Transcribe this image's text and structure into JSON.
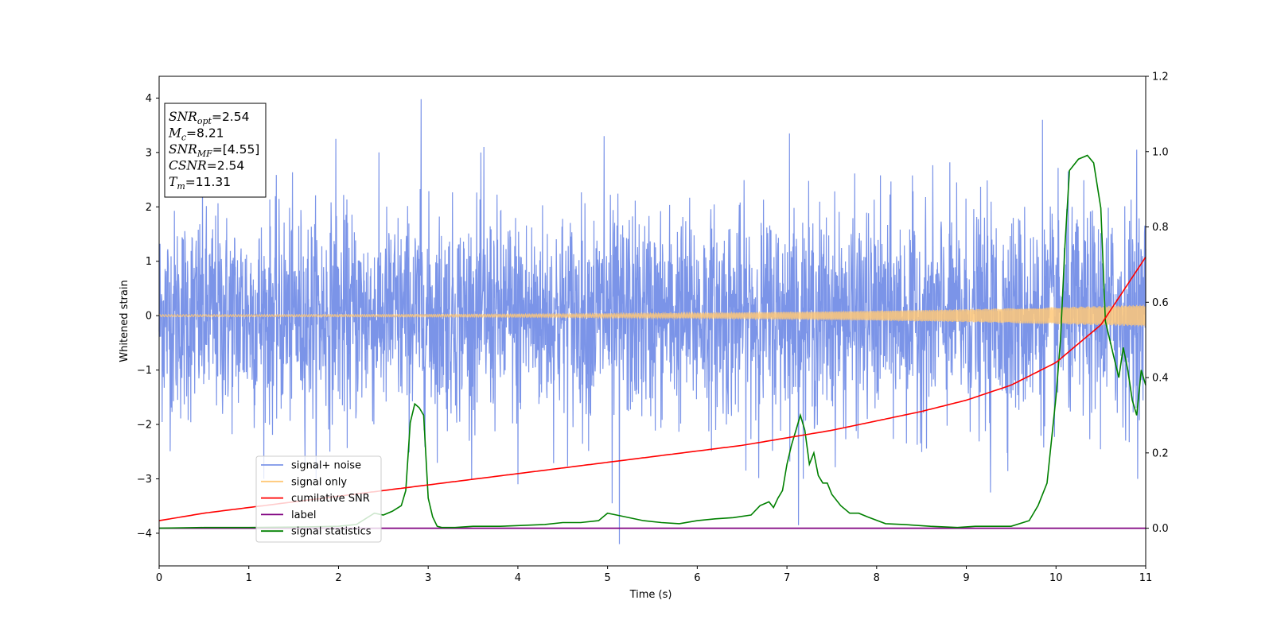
{
  "chart_data": {
    "type": "line",
    "title": "",
    "xlabel": "Time (s)",
    "ylabel": "Whitened strain",
    "xlim": [
      0,
      11
    ],
    "ylim": [
      -4.6,
      4.4
    ],
    "y2lim": [
      -0.1,
      1.2
    ],
    "xticks": [
      "0",
      "1",
      "2",
      "3",
      "4",
      "5",
      "6",
      "7",
      "8",
      "9",
      "10",
      "11"
    ],
    "yticks": [
      "−4",
      "−3",
      "−2",
      "−1",
      "0",
      "1",
      "2",
      "3",
      "4"
    ],
    "y2ticks": [
      "0.0",
      "0.2",
      "0.4",
      "0.6",
      "0.8",
      "1.0",
      "1.2"
    ],
    "grid": false,
    "legend_placement": "lower-left",
    "info_box": {
      "lines": [
        {
          "var": "SNR",
          "sub": "opt",
          "value": "=2.54"
        },
        {
          "var": "M",
          "sub": "c",
          "value": "=8.21"
        },
        {
          "var": "SNR",
          "sub": "MF",
          "value": "=[4.55]"
        },
        {
          "var": "CSNR",
          "sub": "",
          "value": "=2.54"
        },
        {
          "var": "T",
          "sub": "m",
          "value": "=11.31"
        }
      ]
    },
    "series": [
      {
        "name": "signal+ noise",
        "color": "#7b94e8",
        "axis": "left",
        "description": "noisy time series, amplitude about ±2 with peaks near 4 and troughs near −4.2",
        "spikes": [
          {
            "x": 2.92,
            "y": 3.98
          },
          {
            "x": 9.85,
            "y": 3.6
          },
          {
            "x": 7.03,
            "y": 3.35
          },
          {
            "x": 4.96,
            "y": 3.3
          },
          {
            "x": 5.13,
            "y": -4.2
          },
          {
            "x": 7.13,
            "y": -3.85
          },
          {
            "x": 5.05,
            "y": -3.45
          },
          {
            "x": 9.27,
            "y": -3.25
          },
          {
            "x": 4.0,
            "y": -3.1
          },
          {
            "x": 10.9,
            "y": 3.05
          },
          {
            "x": 3.62,
            "y": 3.1
          },
          {
            "x": 1.97,
            "y": 3.25
          }
        ]
      },
      {
        "name": "signal only",
        "color": "#ffc878",
        "axis": "left",
        "description": "chirp with amplitude growing from about 0.02 to 0.2"
      },
      {
        "name": "cumilative SNR",
        "color": "#ff0000",
        "axis": "right",
        "x": [
          0,
          0.5,
          1,
          1.5,
          2,
          2.5,
          3,
          3.5,
          4,
          4.5,
          5,
          5.5,
          6,
          6.5,
          7,
          7.5,
          8,
          8.5,
          9,
          9.5,
          10,
          10.5,
          11
        ],
        "y": [
          0.02,
          0.04,
          0.055,
          0.07,
          0.085,
          0.1,
          0.115,
          0.13,
          0.145,
          0.16,
          0.175,
          0.19,
          0.205,
          0.22,
          0.24,
          0.26,
          0.285,
          0.31,
          0.34,
          0.38,
          0.44,
          0.54,
          0.72
        ]
      },
      {
        "name": "label",
        "color": "#800080",
        "axis": "right",
        "x": [
          0,
          11
        ],
        "y": [
          0.0,
          0.0
        ]
      },
      {
        "name": "signal statistics",
        "color": "#008000",
        "axis": "right",
        "x": [
          0,
          0.5,
          1,
          1.5,
          2,
          2.2,
          2.4,
          2.5,
          2.6,
          2.7,
          2.75,
          2.8,
          2.85,
          2.9,
          2.95,
          3.0,
          3.05,
          3.1,
          3.15,
          3.3,
          3.5,
          3.8,
          4.0,
          4.3,
          4.5,
          4.7,
          4.9,
          5.0,
          5.1,
          5.2,
          5.4,
          5.6,
          5.8,
          6.0,
          6.2,
          6.4,
          6.6,
          6.7,
          6.8,
          6.85,
          6.9,
          6.95,
          7.0,
          7.05,
          7.1,
          7.15,
          7.2,
          7.25,
          7.3,
          7.35,
          7.4,
          7.45,
          7.5,
          7.6,
          7.7,
          7.8,
          7.9,
          8.1,
          8.3,
          8.6,
          8.9,
          9.1,
          9.3,
          9.5,
          9.7,
          9.8,
          9.9,
          10.0,
          10.05,
          10.1,
          10.15,
          10.25,
          10.35,
          10.42,
          10.5,
          10.55,
          10.6,
          10.65,
          10.7,
          10.75,
          10.8,
          10.85,
          10.9,
          10.95,
          11.0
        ],
        "y": [
          0.0,
          0.002,
          0.002,
          0.003,
          0.005,
          0.01,
          0.04,
          0.035,
          0.045,
          0.06,
          0.1,
          0.28,
          0.33,
          0.32,
          0.3,
          0.08,
          0.03,
          0.005,
          0.002,
          0.002,
          0.005,
          0.005,
          0.007,
          0.01,
          0.015,
          0.015,
          0.02,
          0.04,
          0.035,
          0.03,
          0.02,
          0.015,
          0.012,
          0.02,
          0.025,
          0.028,
          0.035,
          0.06,
          0.07,
          0.055,
          0.08,
          0.1,
          0.17,
          0.22,
          0.26,
          0.3,
          0.26,
          0.17,
          0.2,
          0.14,
          0.12,
          0.12,
          0.09,
          0.06,
          0.04,
          0.04,
          0.03,
          0.012,
          0.01,
          0.005,
          0.002,
          0.005,
          0.005,
          0.005,
          0.02,
          0.06,
          0.12,
          0.35,
          0.5,
          0.75,
          0.95,
          0.98,
          0.99,
          0.97,
          0.85,
          0.55,
          0.5,
          0.45,
          0.4,
          0.48,
          0.42,
          0.34,
          0.3,
          0.42,
          0.38
        ]
      }
    ]
  }
}
